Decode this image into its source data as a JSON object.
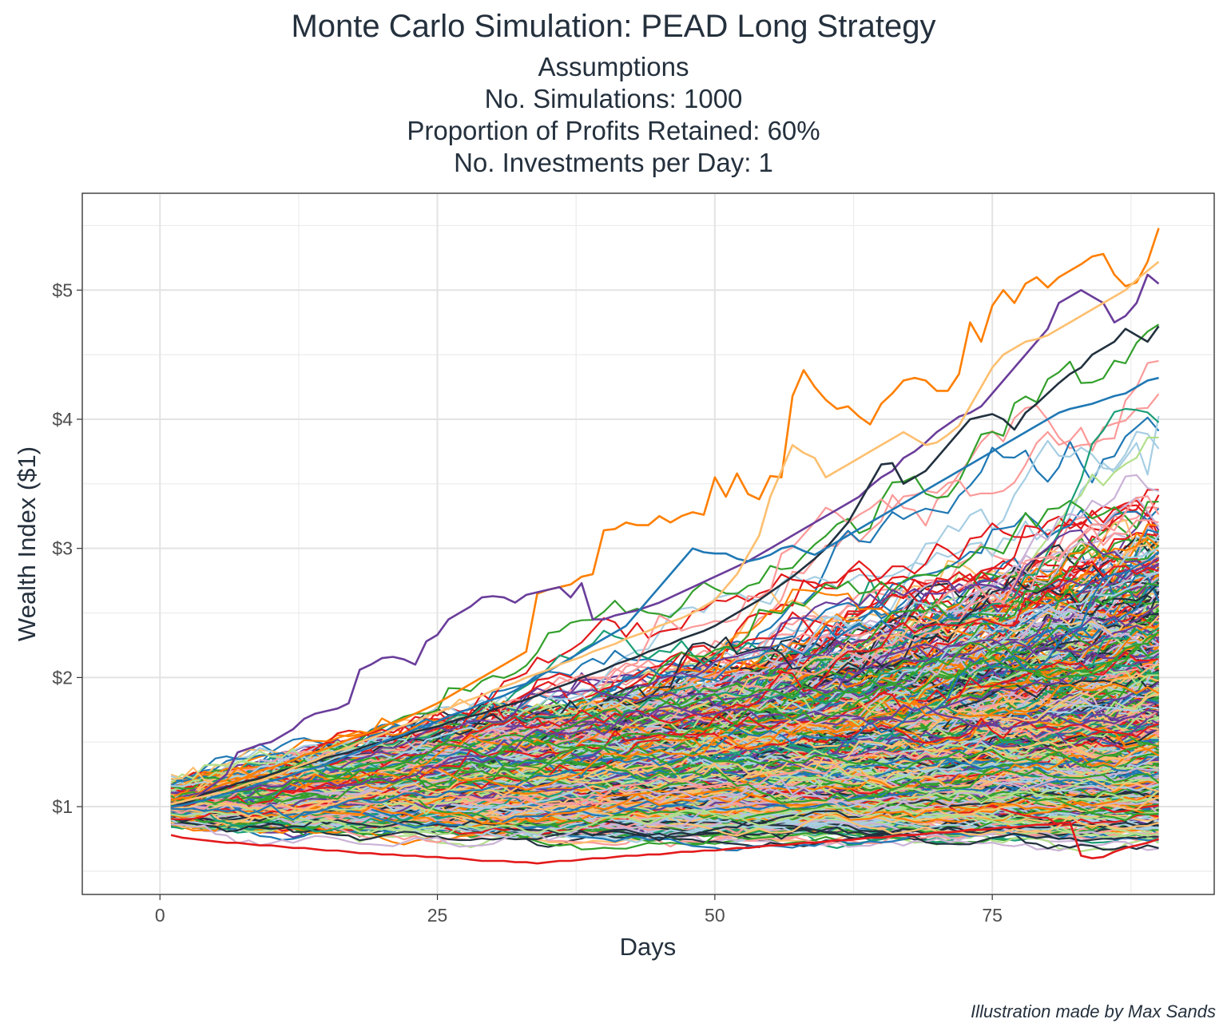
{
  "chart_data": {
    "type": "line",
    "title": "Monte Carlo Simulation: PEAD Long Strategy",
    "subtitle_lines": [
      "Assumptions",
      "No. Simulations: 1000",
      "Proportion of Profits Retained: 60%",
      "No. Investments per Day: 1"
    ],
    "xlabel": "Days",
    "ylabel": "Wealth Index ($1)",
    "caption": "Illustration made by Max Sands",
    "x_range": [
      1,
      90
    ],
    "xlim": [
      -7,
      95
    ],
    "ylim": [
      0.32,
      5.75
    ],
    "x_ticks": [
      0,
      25,
      50,
      75
    ],
    "x_tick_labels": [
      "0",
      "25",
      "50",
      "75"
    ],
    "y_ticks": [
      1,
      2,
      3,
      4,
      5
    ],
    "y_tick_labels": [
      "$1",
      "$2",
      "$3",
      "$4",
      "$5"
    ],
    "grid": true,
    "legend": "none",
    "num_series": 1000,
    "colors": [
      "#e31a1c",
      "#1f78b4",
      "#33a02c",
      "#ff7f00",
      "#6a3d9a",
      "#a6cee3",
      "#b2df8a",
      "#fb9a99",
      "#fdbf6f",
      "#cab2d6",
      "#22313f",
      "#1b9e77"
    ],
    "series": [
      {
        "color": "#ff7f00",
        "values": [
          1.05,
          1.07,
          1.06,
          1.12,
          1.15,
          1.18,
          1.2,
          1.24,
          1.28,
          1.3,
          1.33,
          1.36,
          1.4,
          1.42,
          1.45,
          1.48,
          1.52,
          1.55,
          1.58,
          1.62,
          1.65,
          1.68,
          1.72,
          1.76,
          1.8,
          1.85,
          1.9,
          1.95,
          2.0,
          2.05,
          2.1,
          2.15,
          2.2,
          2.65,
          2.68,
          2.7,
          2.72,
          2.78,
          2.8,
          3.14,
          3.15,
          3.2,
          3.18,
          3.18,
          3.25,
          3.2,
          3.25,
          3.28,
          3.26,
          3.55,
          3.4,
          3.58,
          3.42,
          3.38,
          3.56,
          3.55,
          4.18,
          4.38,
          4.25,
          4.15,
          4.08,
          4.1,
          4.02,
          3.96,
          4.12,
          4.2,
          4.3,
          4.32,
          4.3,
          4.22,
          4.22,
          4.35,
          4.75,
          4.6,
          4.88,
          5.0,
          4.9,
          5.05,
          5.1,
          5.02,
          5.1,
          5.15,
          5.2,
          5.26,
          5.28,
          5.12,
          5.03,
          5.06,
          5.22,
          5.48
        ]
      },
      {
        "color": "#6a3d9a",
        "values": [
          1.03,
          1.02,
          1.05,
          1.12,
          1.18,
          1.25,
          1.42,
          1.45,
          1.48,
          1.5,
          1.55,
          1.6,
          1.68,
          1.72,
          1.74,
          1.76,
          1.8,
          2.06,
          2.1,
          2.15,
          2.16,
          2.14,
          2.1,
          2.28,
          2.33,
          2.45,
          2.5,
          2.55,
          2.62,
          2.63,
          2.62,
          2.58,
          2.64,
          2.66,
          2.68,
          2.7,
          2.62,
          2.73,
          2.45,
          2.45,
          2.48,
          2.5,
          2.52,
          2.55,
          2.58,
          2.62,
          2.66,
          2.7,
          2.74,
          2.78,
          2.82,
          2.86,
          2.9,
          2.95,
          3.0,
          3.05,
          3.1,
          3.15,
          3.2,
          3.25,
          3.3,
          3.35,
          3.4,
          3.48,
          3.55,
          3.6,
          3.7,
          3.75,
          3.82,
          3.9,
          3.96,
          4.02,
          4.05,
          4.1,
          4.2,
          4.3,
          4.4,
          4.5,
          4.6,
          4.7,
          4.9,
          4.95,
          5.0,
          4.95,
          4.9,
          4.75,
          4.8,
          4.9,
          5.12,
          5.05
        ]
      },
      {
        "color": "#22313f",
        "values": [
          1.0,
          1.02,
          1.05,
          1.1,
          1.12,
          1.15,
          1.18,
          1.2,
          1.22,
          1.25,
          1.28,
          1.3,
          1.32,
          1.35,
          1.38,
          1.4,
          1.42,
          1.45,
          1.48,
          1.5,
          1.52,
          1.55,
          1.58,
          1.6,
          1.62,
          1.65,
          1.68,
          1.7,
          1.72,
          1.75,
          1.78,
          1.8,
          1.83,
          1.86,
          1.9,
          1.93,
          1.96,
          2.0,
          2.03,
          2.06,
          2.1,
          2.13,
          2.16,
          2.2,
          2.23,
          2.26,
          2.3,
          2.33,
          2.36,
          2.4,
          2.45,
          2.5,
          2.55,
          2.6,
          2.66,
          2.72,
          2.78,
          2.85,
          2.92,
          3.0,
          3.1,
          3.2,
          3.35,
          3.5,
          3.65,
          3.66,
          3.5,
          3.55,
          3.6,
          3.7,
          3.8,
          3.9,
          4.0,
          4.02,
          4.04,
          4.0,
          3.92,
          4.05,
          4.12,
          4.2,
          4.28,
          4.35,
          4.4,
          4.5,
          4.55,
          4.6,
          4.7,
          4.65,
          4.6,
          4.72
        ]
      },
      {
        "color": "#e31a1c",
        "values": [
          0.78,
          0.76,
          0.75,
          0.74,
          0.73,
          0.72,
          0.72,
          0.71,
          0.7,
          0.7,
          0.69,
          0.68,
          0.68,
          0.67,
          0.66,
          0.66,
          0.65,
          0.64,
          0.64,
          0.63,
          0.63,
          0.62,
          0.62,
          0.61,
          0.61,
          0.6,
          0.6,
          0.59,
          0.58,
          0.58,
          0.58,
          0.57,
          0.57,
          0.56,
          0.57,
          0.58,
          0.58,
          0.59,
          0.6,
          0.6,
          0.61,
          0.62,
          0.62,
          0.63,
          0.63,
          0.64,
          0.65,
          0.65,
          0.66,
          0.66,
          0.67,
          0.68,
          0.68,
          0.69,
          0.7,
          0.7,
          0.71,
          0.72,
          0.72,
          0.73,
          0.74,
          0.74,
          0.75,
          0.76,
          0.76,
          0.77,
          0.78,
          0.78,
          0.79,
          0.8,
          0.8,
          0.81,
          0.82,
          0.82,
          0.83,
          0.84,
          0.84,
          0.85,
          0.86,
          0.86,
          0.87,
          0.88,
          0.62,
          0.6,
          0.61,
          0.65,
          0.68,
          0.7,
          0.72,
          0.75
        ]
      },
      {
        "color": "#1f78b4",
        "values": [
          1.0,
          1.01,
          1.03,
          1.05,
          1.08,
          1.1,
          1.12,
          1.15,
          1.18,
          1.2,
          1.22,
          1.25,
          1.28,
          1.3,
          1.33,
          1.36,
          1.4,
          1.43,
          1.46,
          1.5,
          1.53,
          1.56,
          1.6,
          1.63,
          1.66,
          1.7,
          1.73,
          1.76,
          1.8,
          1.83,
          1.86,
          1.9,
          1.95,
          2.0,
          2.05,
          2.1,
          2.15,
          2.2,
          2.25,
          2.3,
          2.35,
          2.4,
          2.5,
          2.6,
          2.7,
          2.8,
          2.9,
          3.0,
          2.97,
          2.96,
          2.96,
          2.92,
          2.9,
          2.92,
          2.95,
          3.0,
          3.02,
          2.98,
          2.95,
          3.0,
          3.05,
          3.1,
          3.15,
          3.2,
          3.25,
          3.3,
          3.35,
          3.4,
          3.45,
          3.5,
          3.55,
          3.6,
          3.65,
          3.7,
          3.75,
          3.8,
          3.85,
          3.9,
          3.95,
          4.0,
          4.05,
          4.08,
          4.1,
          4.12,
          4.15,
          4.18,
          4.2,
          4.25,
          4.3,
          4.32
        ]
      },
      {
        "color": "#fdbf6f",
        "values": [
          1.02,
          1.04,
          1.06,
          1.08,
          1.1,
          1.12,
          1.15,
          1.18,
          1.2,
          1.23,
          1.26,
          1.3,
          1.33,
          1.36,
          1.4,
          1.43,
          1.46,
          1.5,
          1.53,
          1.56,
          1.6,
          1.63,
          1.66,
          1.7,
          1.73,
          1.76,
          1.8,
          1.83,
          1.86,
          1.9,
          1.93,
          1.96,
          2.0,
          2.03,
          2.06,
          2.1,
          2.13,
          2.16,
          2.2,
          2.23,
          2.26,
          2.3,
          2.33,
          2.36,
          2.4,
          2.43,
          2.46,
          2.5,
          2.55,
          2.6,
          2.7,
          2.8,
          2.95,
          3.1,
          3.4,
          3.6,
          3.8,
          3.74,
          3.7,
          3.55,
          3.6,
          3.65,
          3.7,
          3.75,
          3.8,
          3.85,
          3.9,
          3.85,
          3.8,
          3.82,
          3.88,
          3.95,
          4.1,
          4.25,
          4.4,
          4.5,
          4.55,
          4.6,
          4.62,
          4.65,
          4.7,
          4.75,
          4.8,
          4.85,
          4.9,
          4.95,
          5.0,
          5.08,
          5.15,
          5.22
        ]
      }
    ]
  }
}
